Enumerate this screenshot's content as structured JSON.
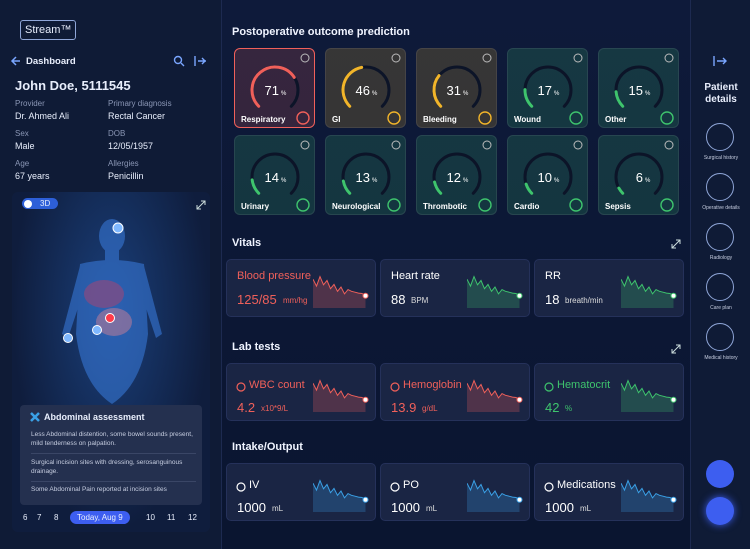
{
  "app": {
    "logo": "Stream™"
  },
  "sidebar": {
    "nav_title": "Dashboard",
    "patient_name": "John Doe, 5111545",
    "fields": [
      {
        "label": "Provider",
        "value": "Dr. Ahmed Ali"
      },
      {
        "label": "Primary diagnosis",
        "value": "Rectal Cancer"
      },
      {
        "label": "Sex",
        "value": "Male"
      },
      {
        "label": "DOB",
        "value": "12/05/1957"
      },
      {
        "label": "Age",
        "value": "67 years"
      },
      {
        "label": "Allergies",
        "value": "Penicillin"
      }
    ],
    "view_toggle": "3D",
    "assessment": {
      "title": "Abdominal assessment",
      "notes": [
        "Less Abdominal distention, some bowel sounds present, mild tenderness on palpation.",
        "Surgical incision sites with dressing, serosanguinous drainage.",
        "Some Abdominal Pain reported at incision sites"
      ]
    },
    "timeline": [
      "6",
      "7",
      "8",
      "Today, Aug 9",
      "10",
      "11",
      "12"
    ]
  },
  "outcomes": {
    "title": "Postoperative outcome prediction",
    "items": [
      {
        "label": "Respiratory",
        "value": 71,
        "unit": "%",
        "color": "#f0605a"
      },
      {
        "label": "GI",
        "value": 46,
        "unit": "%",
        "color": "#f2b52a"
      },
      {
        "label": "Bleeding",
        "value": 31,
        "unit": "%",
        "color": "#f2b52a"
      },
      {
        "label": "Wound",
        "value": 17,
        "unit": "%",
        "color": "#3ec46d"
      },
      {
        "label": "Other",
        "value": 15,
        "unit": "%",
        "color": "#3ec46d"
      },
      {
        "label": "Urinary",
        "value": 14,
        "unit": "%",
        "color": "#3ec46d"
      },
      {
        "label": "Neurological",
        "value": 13,
        "unit": "%",
        "color": "#3ec46d"
      },
      {
        "label": "Thrombotic",
        "value": 12,
        "unit": "%",
        "color": "#3ec46d"
      },
      {
        "label": "Cardio",
        "value": 10,
        "unit": "%",
        "color": "#3ec46d"
      },
      {
        "label": "Sepsis",
        "value": 6,
        "unit": "%",
        "color": "#3ec46d"
      }
    ]
  },
  "vitals": {
    "title": "Vitals",
    "items": [
      {
        "label": "Blood pressure",
        "value": "125/85",
        "unit": "mm/hg",
        "color": "#f0605a",
        "label_color": "#f0605a"
      },
      {
        "label": "Heart rate",
        "value": 88,
        "unit": "BPM",
        "color": "#3ec46d"
      },
      {
        "label": "RR",
        "value": 18,
        "unit": "breath/min",
        "color": "#3ec46d"
      }
    ]
  },
  "lab_tests": {
    "title": "Lab tests",
    "items": [
      {
        "label": "WBC count",
        "value": 4.2,
        "unit": "x10*9/L",
        "color": "#f0605a",
        "label_color": "#f0605a"
      },
      {
        "label": "Hemoglobin",
        "value": 13.9,
        "unit": "g/dL",
        "color": "#f0605a",
        "label_color": "#f0605a"
      },
      {
        "label": "Hematocrit",
        "value": 42,
        "unit": "%",
        "color": "#3ec46d",
        "label_color": "#3ec46d"
      }
    ]
  },
  "intake_output": {
    "title": "Intake/Output",
    "items": [
      {
        "label": "IV",
        "value": 1000,
        "unit": "mL",
        "color": "#3aa0e6"
      },
      {
        "label": "PO",
        "value": 1000,
        "unit": "mL",
        "color": "#3aa0e6"
      },
      {
        "label": "Medications",
        "value": 1000,
        "unit": "mL",
        "color": "#3aa0e6"
      }
    ]
  },
  "patient_details": {
    "title": "Patient details",
    "items": [
      "Surgical history",
      "Operative details",
      "Radiology",
      "Care plan",
      "Medical history"
    ]
  }
}
